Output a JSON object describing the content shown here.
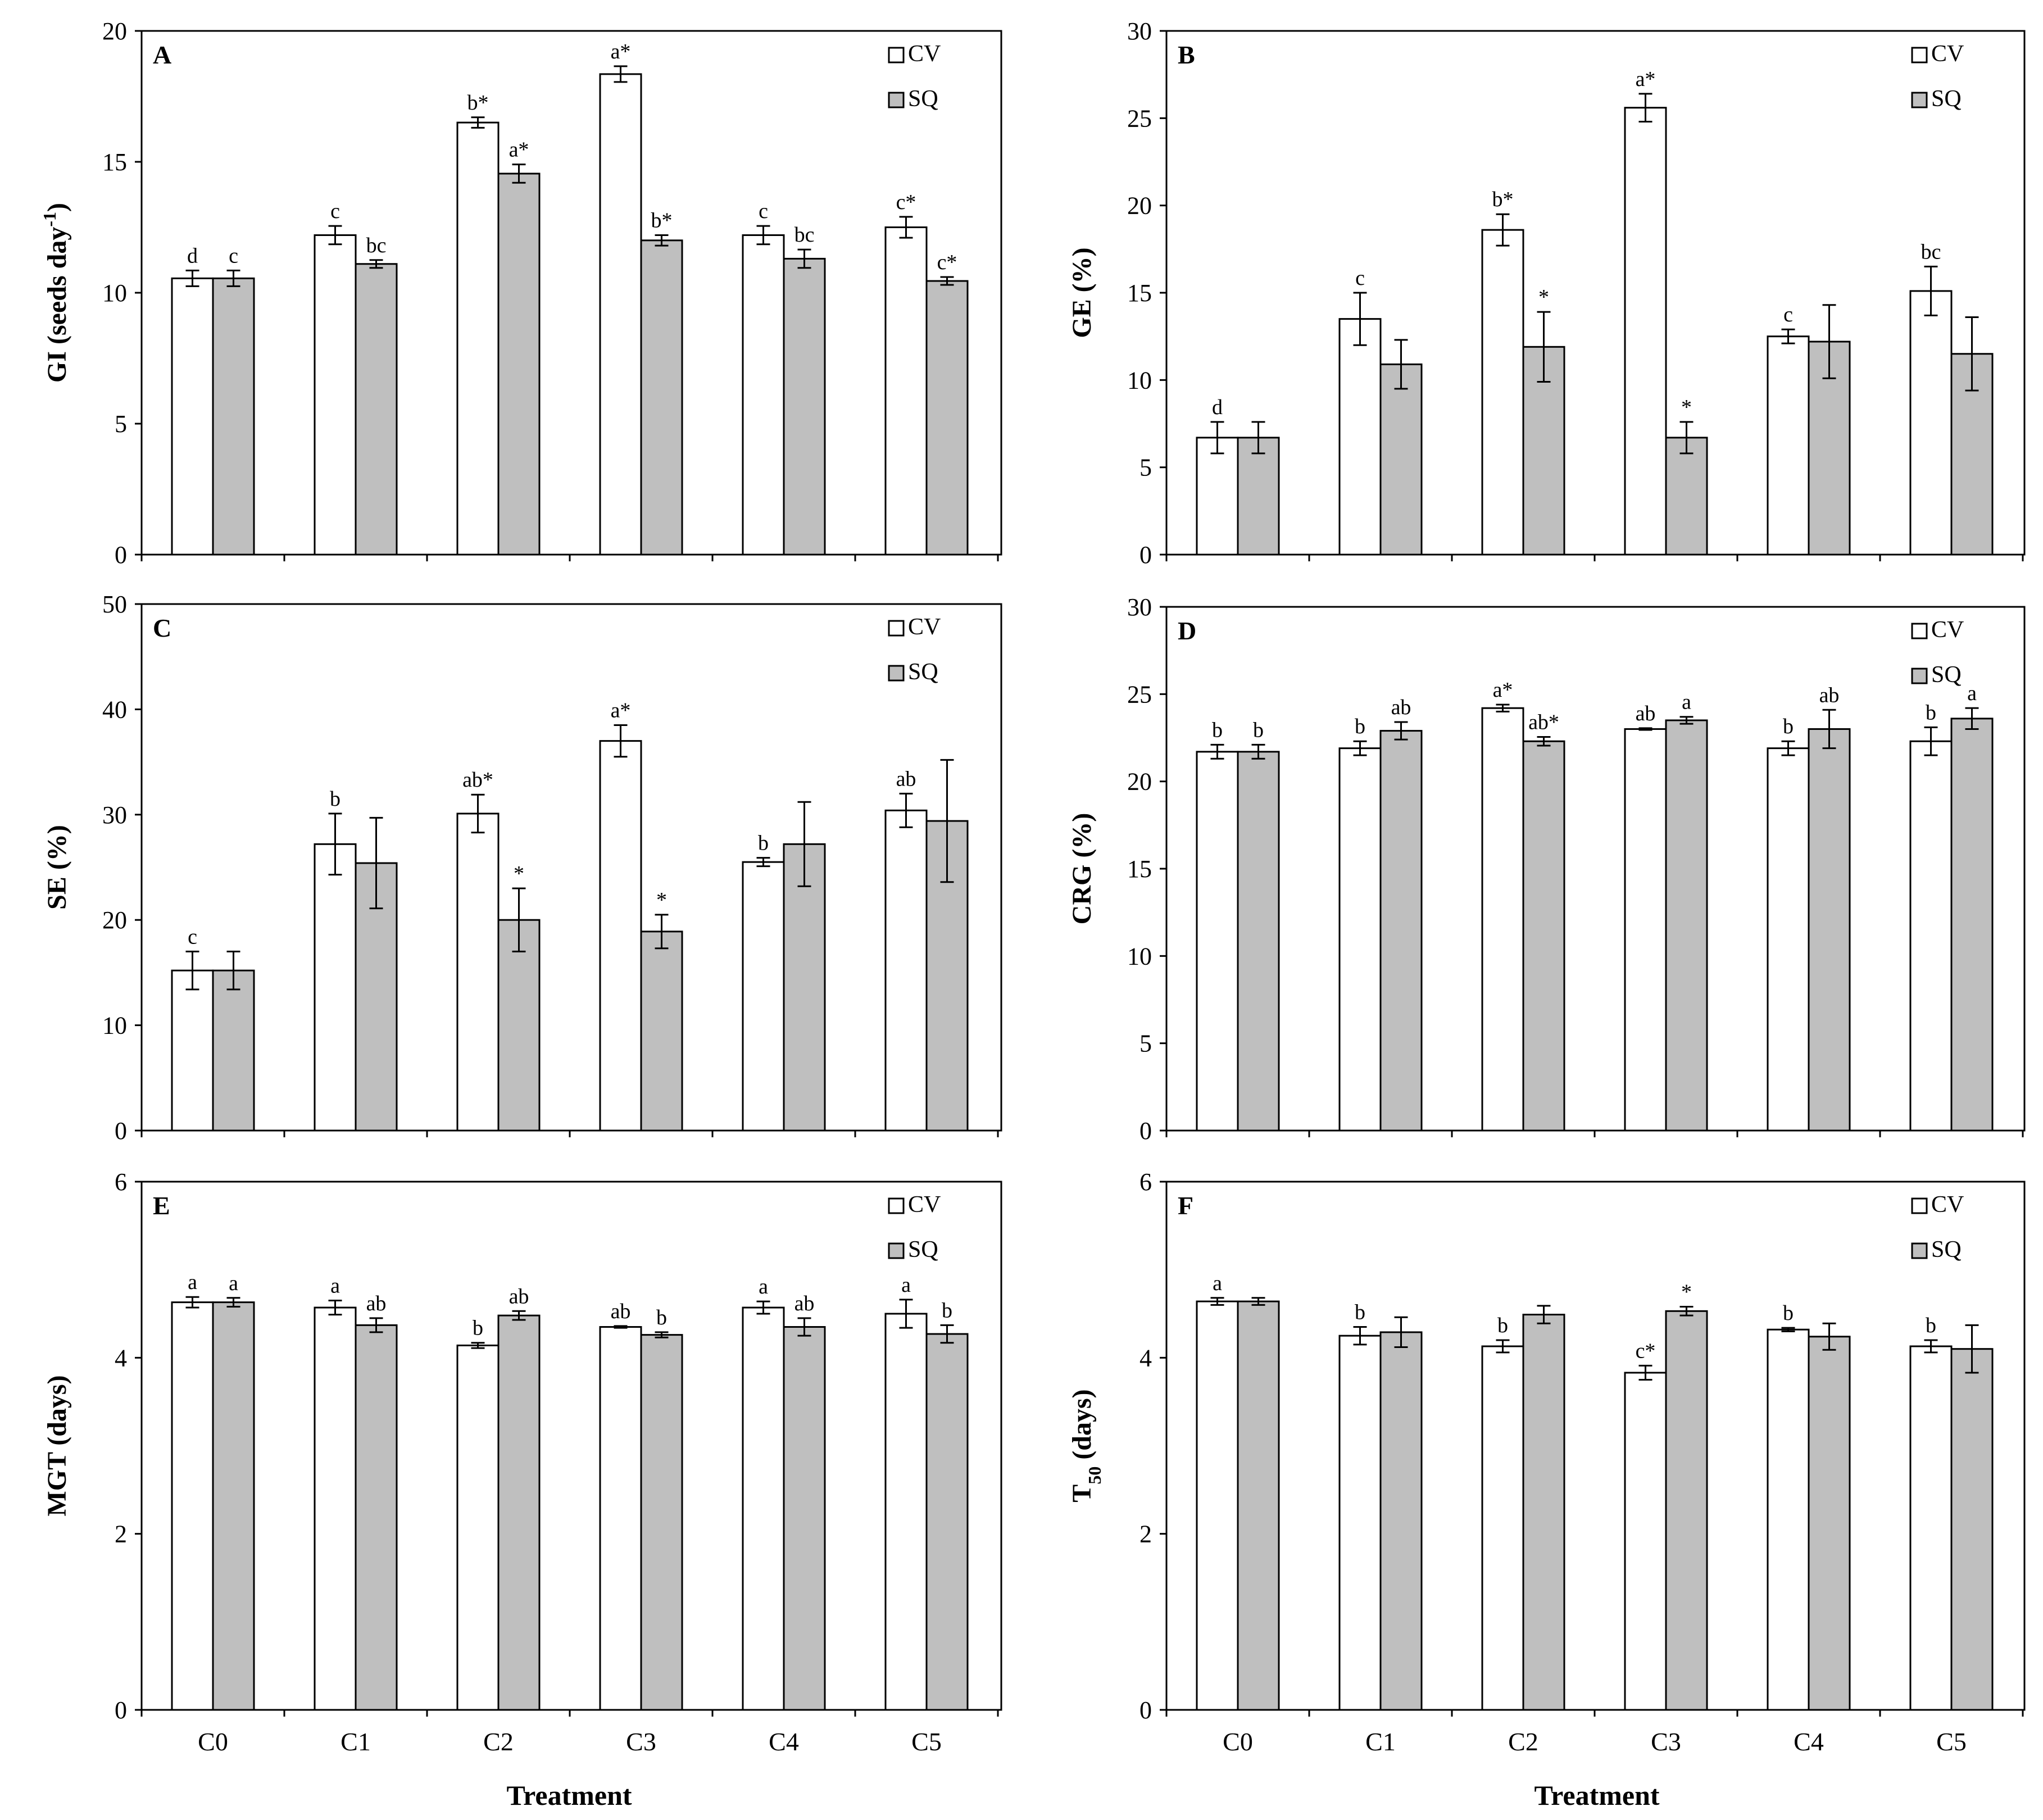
{
  "figure": {
    "shared_xlabel": "Treatment",
    "categories": [
      "C0",
      "C1",
      "C2",
      "C3",
      "C4",
      "C5"
    ],
    "legend": [
      "CV",
      "SQ"
    ],
    "colors": {
      "CV": "#ffffff",
      "SQ": "#bfbfbf",
      "axis": "#000000"
    }
  },
  "chart_data": [
    {
      "id": "A",
      "panel_label": "A",
      "type": "bar",
      "ylabel_main": "GI (seeds day",
      "ylabel_sup": "-1",
      "ylabel_tail": ")",
      "ylim": [
        0,
        20
      ],
      "yticks": [
        0,
        5,
        10,
        15,
        20
      ],
      "series": [
        {
          "name": "CV",
          "values": [
            10.55,
            12.2,
            16.5,
            18.35,
            12.2,
            12.5
          ],
          "errors": [
            0.3,
            0.35,
            0.2,
            0.3,
            0.35,
            0.4
          ],
          "labels": [
            "d",
            "c",
            "b*",
            "a*",
            "c",
            "c*"
          ]
        },
        {
          "name": "SQ",
          "values": [
            10.55,
            11.1,
            14.55,
            12.0,
            11.3,
            10.45
          ],
          "errors": [
            0.3,
            0.15,
            0.35,
            0.2,
            0.35,
            0.15
          ],
          "labels": [
            "c",
            "bc",
            "a*",
            "b*",
            "bc",
            "c*"
          ]
        }
      ]
    },
    {
      "id": "B",
      "panel_label": "B",
      "type": "bar",
      "ylabel_main": "GE (%)",
      "ylim": [
        0,
        30
      ],
      "yticks": [
        0,
        5,
        10,
        15,
        20,
        25,
        30
      ],
      "series": [
        {
          "name": "CV",
          "values": [
            6.7,
            13.5,
            18.6,
            25.6,
            12.5,
            15.1
          ],
          "errors": [
            0.9,
            1.5,
            0.9,
            0.8,
            0.4,
            1.4
          ],
          "labels": [
            "d",
            "c",
            "b*",
            "a*",
            "c",
            "bc"
          ]
        },
        {
          "name": "SQ",
          "values": [
            6.7,
            10.9,
            11.9,
            6.7,
            12.2,
            11.5
          ],
          "errors": [
            0.9,
            1.4,
            2.0,
            0.9,
            2.1,
            2.1
          ],
          "labels": [
            "",
            "",
            "*",
            "*",
            "",
            ""
          ]
        }
      ]
    },
    {
      "id": "C",
      "panel_label": "C",
      "type": "bar",
      "ylabel_main": "SE (%)",
      "ylim": [
        0,
        50
      ],
      "yticks": [
        0,
        10,
        20,
        30,
        40,
        50
      ],
      "series": [
        {
          "name": "CV",
          "values": [
            15.2,
            27.2,
            30.1,
            37.0,
            25.5,
            30.4
          ],
          "errors": [
            1.8,
            2.9,
            1.8,
            1.5,
            0.4,
            1.6
          ],
          "labels": [
            "c",
            "b",
            "ab*",
            "a*",
            "b",
            "ab"
          ]
        },
        {
          "name": "SQ",
          "values": [
            15.2,
            25.4,
            20.0,
            18.9,
            27.2,
            29.4
          ],
          "errors": [
            1.8,
            4.3,
            3.0,
            1.6,
            4.0,
            5.8
          ],
          "labels": [
            "",
            "",
            "*",
            "*",
            "",
            ""
          ]
        }
      ]
    },
    {
      "id": "D",
      "panel_label": "D",
      "type": "bar",
      "ylabel_main": "CRG (%)",
      "ylim": [
        0,
        30
      ],
      "yticks": [
        0,
        5,
        10,
        15,
        20,
        25,
        30
      ],
      "series": [
        {
          "name": "CV",
          "values": [
            21.7,
            21.9,
            24.2,
            23.0,
            21.9,
            22.3
          ],
          "errors": [
            0.4,
            0.4,
            0.2,
            0.05,
            0.4,
            0.8
          ],
          "labels": [
            "b",
            "b",
            "a*",
            "ab",
            "b",
            "b"
          ]
        },
        {
          "name": "SQ",
          "values": [
            21.7,
            22.9,
            22.3,
            23.5,
            23.0,
            23.6
          ],
          "errors": [
            0.4,
            0.5,
            0.25,
            0.2,
            1.1,
            0.6
          ],
          "labels": [
            "b",
            "ab",
            "ab*",
            "a",
            "ab",
            "a"
          ]
        }
      ]
    },
    {
      "id": "E",
      "panel_label": "E",
      "type": "bar",
      "ylabel_main": "MGT (days)",
      "ylim": [
        0,
        6
      ],
      "yticks": [
        0,
        2,
        4,
        6
      ],
      "series": [
        {
          "name": "CV",
          "values": [
            4.63,
            4.57,
            4.14,
            4.35,
            4.57,
            4.5
          ],
          "errors": [
            0.06,
            0.08,
            0.03,
            0.01,
            0.07,
            0.16
          ],
          "labels": [
            "a",
            "a",
            "b",
            "ab",
            "a",
            "a"
          ]
        },
        {
          "name": "SQ",
          "values": [
            4.63,
            4.37,
            4.48,
            4.26,
            4.35,
            4.27
          ],
          "errors": [
            0.05,
            0.08,
            0.05,
            0.03,
            0.1,
            0.1
          ],
          "labels": [
            "a",
            "ab",
            "ab",
            "b",
            "ab",
            "b"
          ]
        }
      ]
    },
    {
      "id": "F",
      "panel_label": "F",
      "type": "bar",
      "ylabel_main": "T",
      "ylabel_sub": "50",
      "ylabel_tail": " (days)",
      "ylim": [
        0,
        6
      ],
      "yticks": [
        0,
        2,
        4,
        6
      ],
      "series": [
        {
          "name": "CV",
          "values": [
            4.64,
            4.25,
            4.13,
            3.83,
            4.32,
            4.13
          ],
          "errors": [
            0.04,
            0.1,
            0.07,
            0.08,
            0.02,
            0.07
          ],
          "labels": [
            "a",
            "b",
            "b",
            "c*",
            "b",
            "b"
          ]
        },
        {
          "name": "SQ",
          "values": [
            4.64,
            4.29,
            4.49,
            4.53,
            4.24,
            4.1
          ],
          "errors": [
            0.04,
            0.17,
            0.1,
            0.05,
            0.15,
            0.27
          ],
          "labels": [
            "",
            "",
            "",
            "*",
            "",
            ""
          ]
        }
      ]
    }
  ]
}
